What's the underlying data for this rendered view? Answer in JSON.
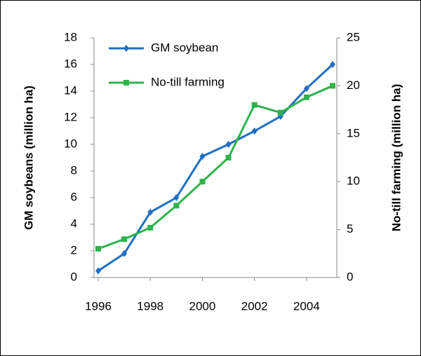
{
  "chart_data": {
    "type": "line",
    "y_label": "GM soybeans (million ha)",
    "y2_label": "No-till farming (million ha)",
    "x": [
      1996,
      1997,
      1998,
      1999,
      2000,
      2001,
      2002,
      2003,
      2004,
      2005
    ],
    "xlim": [
      1996,
      2005
    ],
    "xticks": [
      1996,
      1998,
      2000,
      2002,
      2004
    ],
    "ylim": [
      0,
      18
    ],
    "yticks": [
      0,
      2,
      4,
      6,
      8,
      10,
      12,
      14,
      16,
      18
    ],
    "y2lim": [
      0,
      25
    ],
    "y2ticks": [
      0,
      5,
      10,
      15,
      20,
      25
    ],
    "legend": "upper left",
    "series": [
      {
        "name": "GM soybean",
        "color": "#1f6fc5",
        "marker": "diamond",
        "values": [
          0.5,
          1.8,
          4.9,
          6.0,
          9.1,
          10.0,
          11.0,
          12.1,
          14.2,
          16.0
        ]
      },
      {
        "name": "No-till farming",
        "color": "#2db34a",
        "marker": "square",
        "axis": "y2",
        "values": [
          3.0,
          4.0,
          5.2,
          7.5,
          10.0,
          12.5,
          18.0,
          17.2,
          18.8,
          20.0
        ]
      }
    ]
  }
}
